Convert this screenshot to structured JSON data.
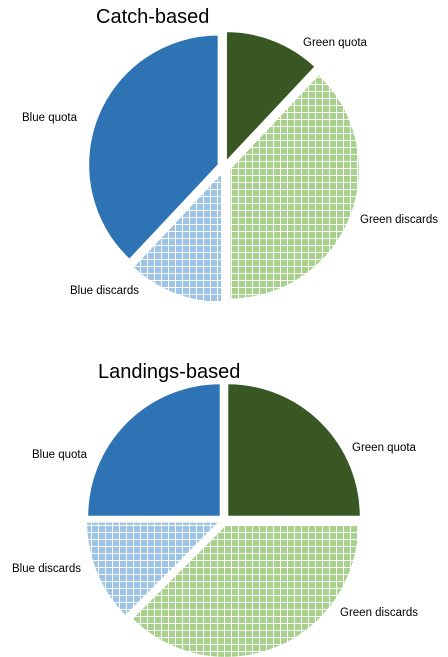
{
  "colors": {
    "blue": "#2E74B5",
    "light_blue": "#9DC3E6",
    "green": "#385723",
    "light_green": "#A9D18E",
    "hatch": "#ffffff"
  },
  "chart_data": [
    {
      "type": "pie",
      "title": "Catch-based",
      "slices": [
        {
          "label": "Green quota",
          "value": 12,
          "color": "green",
          "pattern": "solid"
        },
        {
          "label": "Green discards",
          "value": 38,
          "color": "light_green",
          "pattern": "grid"
        },
        {
          "label": "Blue discards",
          "value": 12,
          "color": "light_blue",
          "pattern": "grid"
        },
        {
          "label": "Blue quota",
          "value": 38,
          "color": "blue",
          "pattern": "solid"
        }
      ]
    },
    {
      "type": "pie",
      "title": "Landings-based",
      "slices": [
        {
          "label": "Green quota",
          "value": 25,
          "color": "green",
          "pattern": "solid"
        },
        {
          "label": "Green discards",
          "value": 37.5,
          "color": "light_green",
          "pattern": "grid"
        },
        {
          "label": "Blue discards",
          "value": 12.5,
          "color": "light_blue",
          "pattern": "grid"
        },
        {
          "label": "Blue quota",
          "value": 25,
          "color": "blue",
          "pattern": "solid"
        }
      ]
    }
  ]
}
